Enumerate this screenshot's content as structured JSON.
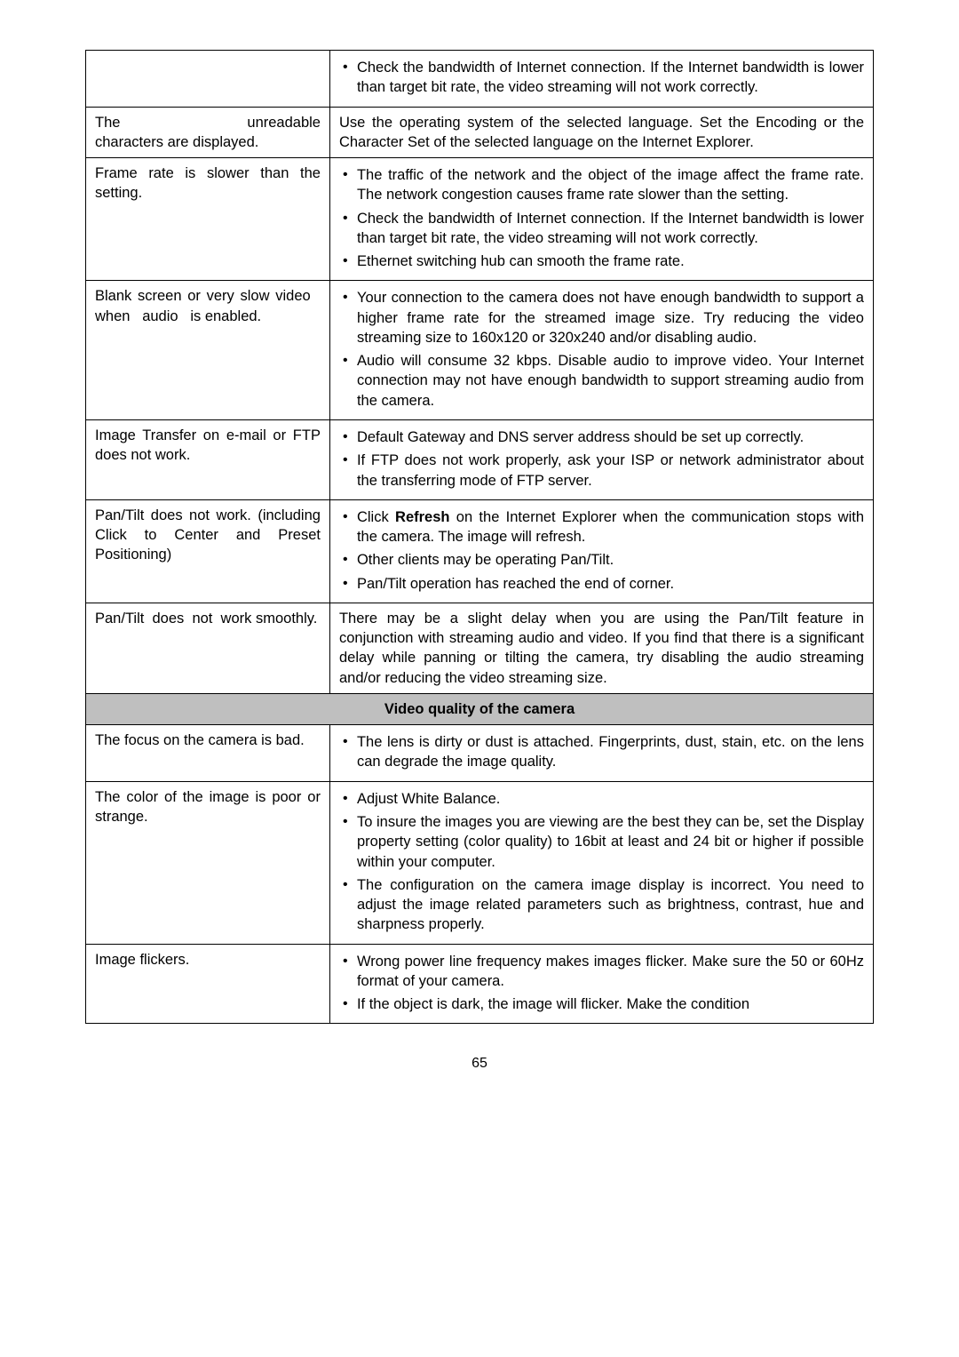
{
  "rows": [
    {
      "left": "",
      "items": [
        "Check the bandwidth of Internet connection. If the Internet bandwidth is lower than target bit rate, the video streaming will not work correctly."
      ]
    },
    {
      "left": "The unreadable characters are displayed.",
      "plain": "Use the operating system of the selected language. Set the Encoding or the Character Set of the selected language on the Internet Explorer."
    },
    {
      "left": "Frame rate is slower than the setting.",
      "items": [
        "The traffic of the network and the object of the image affect the frame rate. The network congestion causes frame rate slower than the setting.",
        "Check the bandwidth of Internet connection. If the Internet bandwidth is lower than target bit rate, the video streaming will not work correctly.",
        "Ethernet switching hub can smooth the frame rate."
      ]
    },
    {
      "left": "Blank screen or very slow video when audio is enabled.",
      "items": [
        "Your connection to the camera does not have enough bandwidth to support a higher frame rate for the streamed image size. Try reducing the video streaming size to 160x120 or 320x240 and/or disabling audio.",
        "Audio will consume 32 kbps. Disable audio to improve video. Your Internet connection may not have enough bandwidth to support streaming audio from the camera."
      ]
    },
    {
      "left": "Image Transfer on e-mail or FTP does not work.",
      "items": [
        "Default Gateway and DNS server address should be set up correctly.",
        "If FTP does not work properly, ask your ISP or network administrator about the transferring mode of FTP server."
      ]
    },
    {
      "left": "Pan/Tilt does not work. (including Click to Center and Preset Positioning)",
      "items_html": [
        "Click <strong>Refresh</strong> on the Internet Explorer when the communication stops with the camera. The image will refresh.",
        "Other clients may be operating Pan/Tilt.",
        "Pan/Tilt operation has reached the end of corner."
      ]
    },
    {
      "left": "Pan/Tilt does not work smoothly.",
      "plain": "There may be a slight delay when you are using the Pan/Tilt feature in conjunction with streaming audio and video. If you find that there is a significant delay while panning or tilting the camera, try disabling the audio streaming and/or reducing the video streaming size."
    }
  ],
  "section2_title": "Video quality of the camera",
  "rows2": [
    {
      "left": "The focus on the camera is bad.",
      "items": [
        "The lens is dirty or dust is attached. Fingerprints, dust, stain, etc. on the lens can degrade the image quality."
      ]
    },
    {
      "left": "The color of the image is poor or strange.",
      "items": [
        "Adjust White Balance.",
        "To insure the images you are viewing are the best they can be, set the Display property setting (color quality) to 16bit at least and 24 bit or higher if possible within your computer.",
        "The configuration on the camera image display is incorrect. You need to adjust the image related parameters such as brightness, contrast, hue and sharpness properly."
      ]
    },
    {
      "left": "Image flickers.",
      "items": [
        "Wrong power line frequency makes images flicker. Make sure the 50 or 60Hz format of your camera.",
        "If the object is dark, the image will flicker. Make the condition"
      ]
    }
  ],
  "page_number": "65"
}
